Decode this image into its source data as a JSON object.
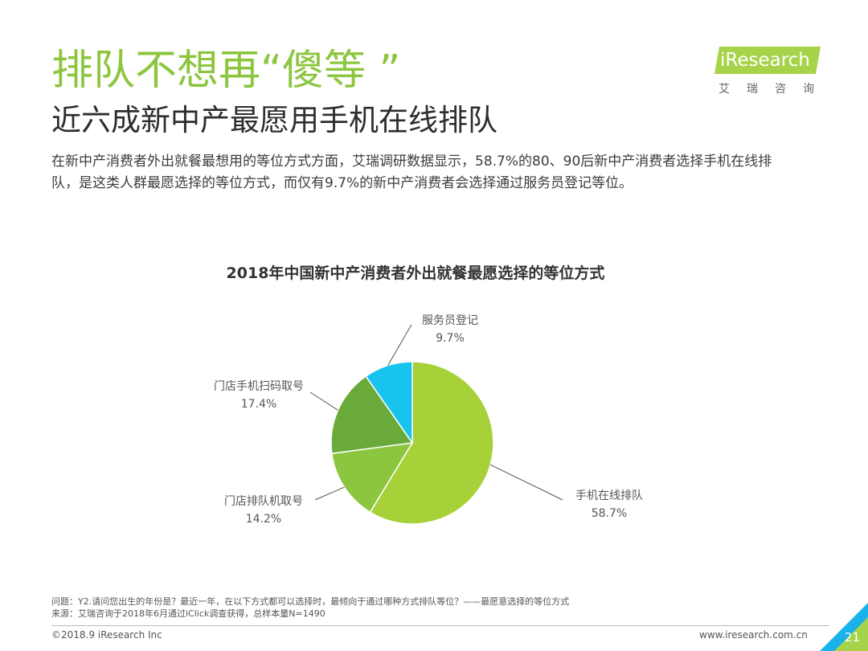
{
  "header": {
    "title": "排队不想再“傻等 ”",
    "subtitle": "近六成新中产最愿用手机在线排队",
    "intro_line1": "在新中产消费者外出就餐最想用的等位方式方面，艾瑞调研数据显示，58.7%的80、90后新中产消费者选择手机在线排",
    "intro_line2": "队，是这类人群最愿选择的等位方式，而仅有9.7%的新中产消费者会选择通过服务员登记等位。"
  },
  "logo": {
    "brand": "iResearch",
    "sub": "艾瑞咨询"
  },
  "chart_data": {
    "type": "pie",
    "title": "2018年中国新中产消费者外出就餐最愿选择的等位方式",
    "slices": [
      {
        "label": "手机在线排队",
        "value": 58.7,
        "value_label": "58.7%",
        "color": "#a6d139"
      },
      {
        "label": "门店排队机取号",
        "value": 14.2,
        "value_label": "14.2%",
        "color": "#8cc63f"
      },
      {
        "label": "门店手机扫码取号",
        "value": 17.4,
        "value_label": "17.4%",
        "color": "#6aaa3a"
      },
      {
        "label": "服务员登记",
        "value": 9.7,
        "value_label": "9.7%",
        "color": "#18c3ed"
      }
    ]
  },
  "notes": {
    "question": "问题：Y2.请问您出生的年份是？最近一年，在以下方式都可以选择时，最倾向于通过哪种方式排队等位？——最愿意选择的等位方式",
    "source": "来源：艾瑞咨询于2018年6月通过iClick调查获得，总样本量N=1490"
  },
  "footer": {
    "copyright": "©2018.9 iResearch Inc",
    "url": "www.iresearch.com.cn",
    "page": "21"
  },
  "colors": {
    "accent_green": "#8cc63f",
    "logo_green": "#a6d34a",
    "corner_blue": "#1ab2e8"
  }
}
